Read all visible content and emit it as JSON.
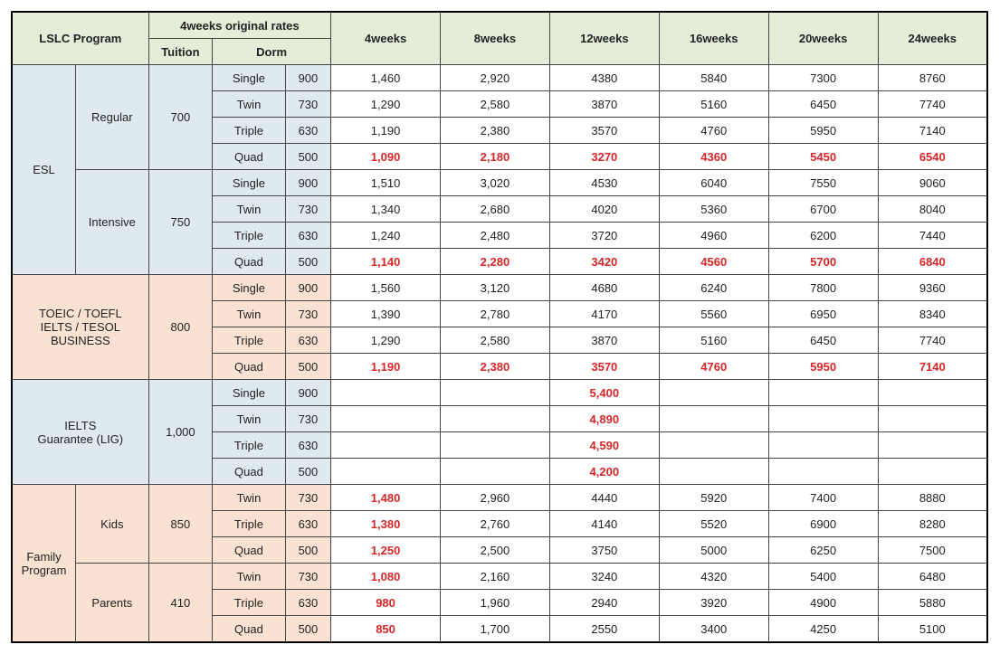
{
  "headers": {
    "program": "LSLC Program",
    "original": "4weeks original rates",
    "tuition": "Tuition",
    "dorm": "Dorm",
    "weeks": [
      "4weeks",
      "8weeks",
      "12weeks",
      "16weeks",
      "20weeks",
      "24weeks"
    ]
  },
  "colors": {
    "green": "#e5edd9",
    "blue": "#dfeaf0",
    "peach": "#f9e2d2",
    "red": "#d62728"
  },
  "groups": [
    {
      "name": "ESL",
      "bg": "blue",
      "subgroups": [
        {
          "name": "Regular",
          "tuition": "700",
          "rows": [
            {
              "dorm": "Single",
              "rate": "900",
              "vals": [
                "1,460",
                "2,920",
                "4380",
                "5840",
                "7300",
                "8760"
              ],
              "red": false
            },
            {
              "dorm": "Twin",
              "rate": "730",
              "vals": [
                "1,290",
                "2,580",
                "3870",
                "5160",
                "6450",
                "7740"
              ],
              "red": false
            },
            {
              "dorm": "Triple",
              "rate": "630",
              "vals": [
                "1,190",
                "2,380",
                "3570",
                "4760",
                "5950",
                "7140"
              ],
              "red": false
            },
            {
              "dorm": "Quad",
              "rate": "500",
              "vals": [
                "1,090",
                "2,180",
                "3270",
                "4360",
                "5450",
                "6540"
              ],
              "red": true
            }
          ]
        },
        {
          "name": "Intensive",
          "tuition": "750",
          "rows": [
            {
              "dorm": "Single",
              "rate": "900",
              "vals": [
                "1,510",
                "3,020",
                "4530",
                "6040",
                "7550",
                "9060"
              ],
              "red": false
            },
            {
              "dorm": "Twin",
              "rate": "730",
              "vals": [
                "1,340",
                "2,680",
                "4020",
                "5360",
                "6700",
                "8040"
              ],
              "red": false
            },
            {
              "dorm": "Triple",
              "rate": "630",
              "vals": [
                "1,240",
                "2,480",
                "3720",
                "4960",
                "6200",
                "7440"
              ],
              "red": false
            },
            {
              "dorm": "Quad",
              "rate": "500",
              "vals": [
                "1,140",
                "2,280",
                "3420",
                "4560",
                "5700",
                "6840"
              ],
              "red": true
            }
          ]
        }
      ]
    },
    {
      "name": "TOEIC / TOEFL\nIELTS / TESOL\nBUSINESS",
      "bg": "peach",
      "noSub": true,
      "tuition": "800",
      "rows": [
        {
          "dorm": "Single",
          "rate": "900",
          "vals": [
            "1,560",
            "3,120",
            "4680",
            "6240",
            "7800",
            "9360"
          ],
          "red": false
        },
        {
          "dorm": "Twin",
          "rate": "730",
          "vals": [
            "1,390",
            "2,780",
            "4170",
            "5560",
            "6950",
            "8340"
          ],
          "red": false
        },
        {
          "dorm": "Triple",
          "rate": "630",
          "vals": [
            "1,290",
            "2,580",
            "3870",
            "5160",
            "6450",
            "7740"
          ],
          "red": false
        },
        {
          "dorm": "Quad",
          "rate": "500",
          "vals": [
            "1,190",
            "2,380",
            "3570",
            "4760",
            "5950",
            "7140"
          ],
          "red": true
        }
      ]
    },
    {
      "name": "IELTS\nGuarantee (LIG)",
      "bg": "blue",
      "noSub": true,
      "tuition": "1,000",
      "rows": [
        {
          "dorm": "Single",
          "rate": "900",
          "vals": [
            "",
            "",
            "5,400",
            "",
            "",
            ""
          ],
          "red": true
        },
        {
          "dorm": "Twin",
          "rate": "730",
          "vals": [
            "",
            "",
            "4,890",
            "",
            "",
            ""
          ],
          "red": true
        },
        {
          "dorm": "Triple",
          "rate": "630",
          "vals": [
            "",
            "",
            "4,590",
            "",
            "",
            ""
          ],
          "red": true
        },
        {
          "dorm": "Quad",
          "rate": "500",
          "vals": [
            "",
            "",
            "4,200",
            "",
            "",
            ""
          ],
          "red": true
        }
      ]
    },
    {
      "name": "Family\nProgram",
      "bg": "peach",
      "subgroups": [
        {
          "name": "Kids",
          "tuition": "850",
          "rows": [
            {
              "dorm": "Twin",
              "rate": "730",
              "vals": [
                "1,480",
                "2,960",
                "4440",
                "5920",
                "7400",
                "8880"
              ],
              "redCols": [
                0
              ]
            },
            {
              "dorm": "Triple",
              "rate": "630",
              "vals": [
                "1,380",
                "2,760",
                "4140",
                "5520",
                "6900",
                "8280"
              ],
              "redCols": [
                0
              ]
            },
            {
              "dorm": "Quad",
              "rate": "500",
              "vals": [
                "1,250",
                "2,500",
                "3750",
                "5000",
                "6250",
                "7500"
              ],
              "redCols": [
                0
              ]
            }
          ]
        },
        {
          "name": "Parents",
          "tuition": "410",
          "rows": [
            {
              "dorm": "Twin",
              "rate": "730",
              "vals": [
                "1,080",
                "2,160",
                "3240",
                "4320",
                "5400",
                "6480"
              ],
              "redCols": [
                0
              ]
            },
            {
              "dorm": "Triple",
              "rate": "630",
              "vals": [
                "980",
                "1,960",
                "2940",
                "3920",
                "4900",
                "5880"
              ],
              "redCols": [
                0
              ]
            },
            {
              "dorm": "Quad",
              "rate": "500",
              "vals": [
                "850",
                "1,700",
                "2550",
                "3400",
                "4250",
                "5100"
              ],
              "redCols": [
                0
              ]
            }
          ]
        }
      ]
    }
  ]
}
